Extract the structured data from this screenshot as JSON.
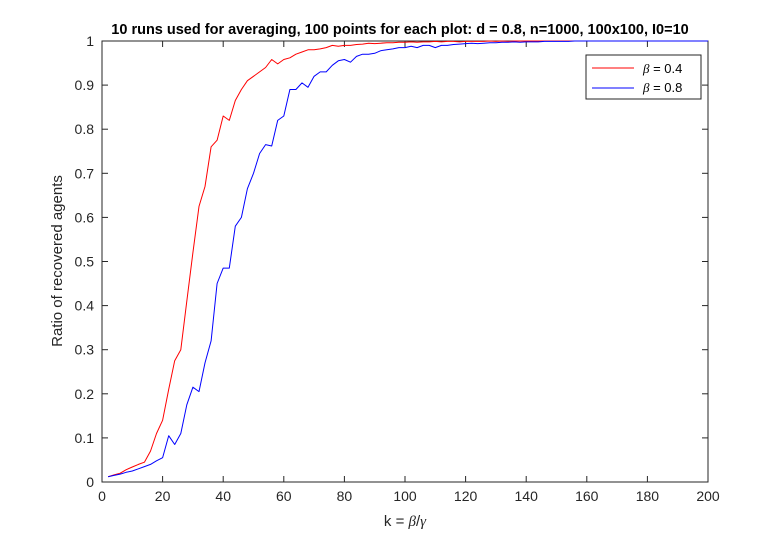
{
  "chart_data": {
    "type": "line",
    "title": "10 runs used for averaging, 100 points for each plot: d = 0.8, n=1000, 100x100, I0=10",
    "xlabel": {
      "prefix": "k = ",
      "greek1": "β",
      "slash": "/",
      "greek2": "γ"
    },
    "ylabel": "Ratio of recovered agents",
    "xlim": [
      0,
      200
    ],
    "ylim": [
      0,
      1
    ],
    "xticks": [
      "0",
      "20",
      "40",
      "60",
      "80",
      "100",
      "120",
      "140",
      "160",
      "180",
      "200"
    ],
    "yticks": [
      "0",
      "0.1",
      "0.2",
      "0.3",
      "0.4",
      "0.5",
      "0.6",
      "0.7",
      "0.8",
      "0.9",
      "1"
    ],
    "grid": false,
    "legend_position": "top-right",
    "series": [
      {
        "name": "β = 0.4",
        "legend_greek": "β",
        "legend_rest": " = 0.4",
        "color": "#ff0000",
        "x": [
          2,
          4,
          6,
          8,
          10,
          12,
          14,
          16,
          18,
          20,
          22,
          24,
          26,
          28,
          30,
          32,
          34,
          36,
          38,
          40,
          42,
          44,
          46,
          48,
          50,
          52,
          54,
          56,
          58,
          60,
          62,
          64,
          66,
          68,
          70,
          72,
          74,
          76,
          78,
          80,
          82,
          84,
          86,
          88,
          90,
          92,
          94,
          96,
          98,
          100,
          102,
          104,
          106,
          108,
          110,
          112,
          114,
          116,
          118,
          120,
          122,
          124,
          126,
          128,
          130,
          132,
          134,
          136,
          138,
          140,
          142,
          144,
          146,
          148,
          150,
          152,
          154,
          156,
          158,
          160,
          200
        ],
        "y": [
          0.012,
          0.016,
          0.02,
          0.028,
          0.034,
          0.04,
          0.045,
          0.07,
          0.11,
          0.14,
          0.21,
          0.275,
          0.3,
          0.41,
          0.52,
          0.625,
          0.67,
          0.76,
          0.775,
          0.83,
          0.82,
          0.865,
          0.89,
          0.91,
          0.92,
          0.93,
          0.94,
          0.958,
          0.948,
          0.958,
          0.962,
          0.97,
          0.975,
          0.98,
          0.98,
          0.982,
          0.985,
          0.99,
          0.988,
          0.99,
          0.99,
          0.992,
          0.993,
          0.995,
          0.994,
          0.995,
          0.996,
          0.996,
          0.997,
          0.997,
          0.998,
          0.997,
          0.998,
          0.998,
          0.999,
          0.998,
          0.999,
          0.999,
          0.998,
          0.999,
          0.999,
          0.999,
          0.999,
          1.0,
          0.999,
          1.0,
          0.999,
          1.0,
          1.0,
          1.0,
          1.0,
          1.0,
          1.0,
          1.0,
          1.0,
          1.0,
          1.0,
          1.0,
          1.0,
          1.0,
          1.0
        ]
      },
      {
        "name": "β = 0.8",
        "legend_greek": "β",
        "legend_rest": " = 0.8",
        "color": "#0000ff",
        "x": [
          2,
          4,
          6,
          8,
          10,
          12,
          14,
          16,
          18,
          20,
          22,
          24,
          26,
          28,
          30,
          32,
          34,
          36,
          38,
          40,
          42,
          44,
          46,
          48,
          50,
          52,
          54,
          56,
          58,
          60,
          62,
          64,
          66,
          68,
          70,
          72,
          74,
          76,
          78,
          80,
          82,
          84,
          86,
          88,
          90,
          92,
          94,
          96,
          98,
          100,
          102,
          104,
          106,
          108,
          110,
          112,
          114,
          116,
          118,
          120,
          122,
          124,
          126,
          128,
          130,
          132,
          134,
          136,
          138,
          140,
          142,
          144,
          146,
          148,
          150,
          152,
          154,
          156,
          158,
          160,
          200
        ],
        "y": [
          0.012,
          0.015,
          0.018,
          0.022,
          0.025,
          0.03,
          0.035,
          0.04,
          0.048,
          0.055,
          0.105,
          0.085,
          0.11,
          0.175,
          0.215,
          0.205,
          0.27,
          0.32,
          0.45,
          0.485,
          0.485,
          0.58,
          0.6,
          0.665,
          0.7,
          0.745,
          0.765,
          0.762,
          0.82,
          0.83,
          0.89,
          0.89,
          0.905,
          0.895,
          0.92,
          0.93,
          0.93,
          0.945,
          0.955,
          0.958,
          0.952,
          0.965,
          0.97,
          0.97,
          0.972,
          0.978,
          0.98,
          0.982,
          0.985,
          0.985,
          0.988,
          0.985,
          0.99,
          0.99,
          0.985,
          0.99,
          0.99,
          0.992,
          0.993,
          0.994,
          0.995,
          0.994,
          0.995,
          0.996,
          0.996,
          0.997,
          0.997,
          0.998,
          0.997,
          0.998,
          0.998,
          0.998,
          0.999,
          0.999,
          0.999,
          0.999,
          0.999,
          1.0,
          1.0,
          1.0,
          1.0
        ]
      }
    ]
  }
}
